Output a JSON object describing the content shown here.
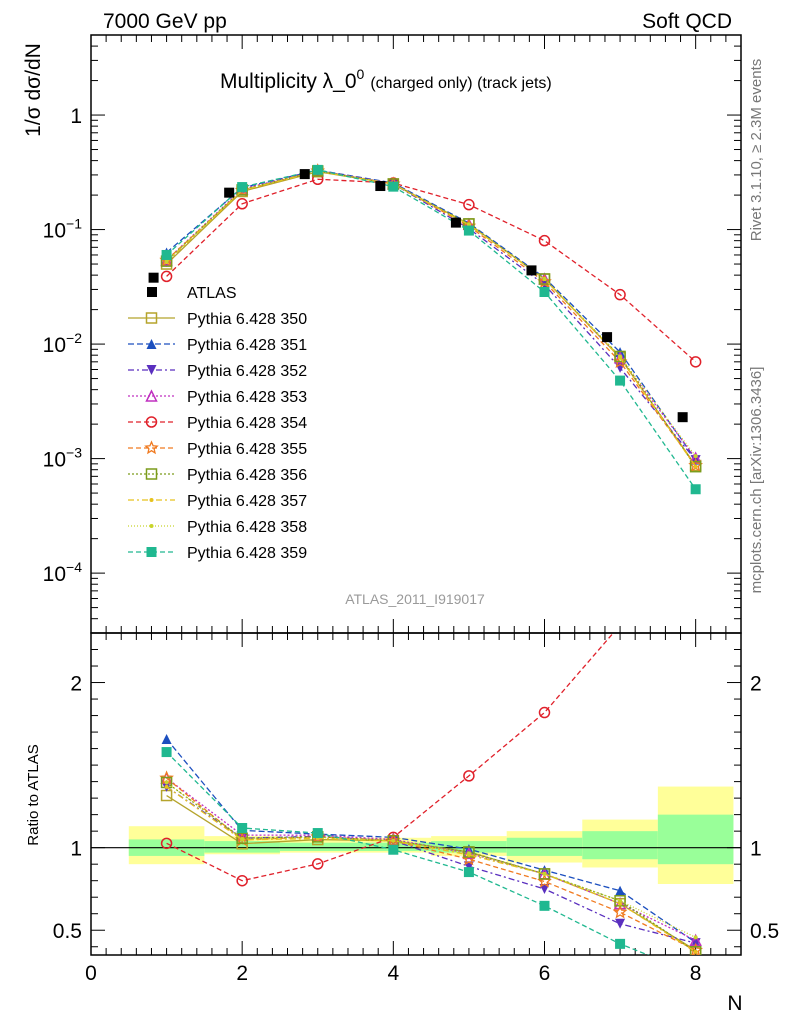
{
  "header": {
    "left": "7000 GeV pp",
    "right": "Soft QCD"
  },
  "side_labels": {
    "rivet": "Rivet 3.1.10, ≥ 2.3M events",
    "mcplots": "mcplots.cern.ch [arXiv:1306.3436]"
  },
  "chart_data": {
    "type": "scatter",
    "title": "Multiplicity λ_0⁰ (charged only) (track jets)",
    "title_main": "Multiplicity λ_0",
    "title_sup": "0",
    "title_small": "(charged only) (track jets)",
    "analysis_label": "ATLAS_2011_I919017",
    "ylabel": "1/σ dσ/dN",
    "xlabel": "N",
    "ratio_ylabel": "Ratio to ATLAS",
    "xlim": [
      0,
      8.6
    ],
    "ylim": [
      3e-05,
      5
    ],
    "yscale": "log",
    "ratio_ylim": [
      0.35,
      2.3
    ],
    "x_ticks": [
      0,
      2,
      4,
      6,
      8
    ],
    "y_tick_labels": [
      {
        "value": 1,
        "base": "1",
        "exp": ""
      },
      {
        "value": 0.1,
        "base": "10",
        "exp": "−1"
      },
      {
        "value": 0.01,
        "base": "10",
        "exp": "−2"
      },
      {
        "value": 0.001,
        "base": "10",
        "exp": "−3"
      },
      {
        "value": 0.0001,
        "base": "10",
        "exp": "−4"
      }
    ],
    "ratio_y_ticks": [
      0.5,
      1,
      2
    ],
    "x": [
      1,
      2,
      3,
      4,
      5,
      6,
      7,
      8
    ],
    "data": {
      "name": "ATLAS",
      "color": "#000000",
      "values": [
        0.038,
        0.21,
        0.305,
        0.24,
        0.115,
        0.044,
        0.0115,
        0.0023
      ],
      "bands": {
        "stat_lo": [
          0.95,
          0.97,
          0.98,
          0.98,
          0.97,
          0.95,
          0.93,
          0.9
        ],
        "stat_hi": [
          1.05,
          1.04,
          1.03,
          1.03,
          1.04,
          1.06,
          1.1,
          1.2
        ],
        "tot_lo": [
          0.9,
          0.96,
          0.97,
          0.97,
          0.95,
          0.91,
          0.88,
          0.78
        ],
        "tot_hi": [
          1.13,
          1.07,
          1.05,
          1.06,
          1.07,
          1.1,
          1.17,
          1.37
        ]
      }
    },
    "series": [
      {
        "name": "Pythia 6.428 350",
        "color": "#b5a42c",
        "marker": "square-open",
        "dash": "",
        "values": [
          0.05,
          0.215,
          0.32,
          0.25,
          0.112,
          0.037,
          0.0076,
          0.00087
        ]
      },
      {
        "name": "Pythia 6.428 351",
        "color": "#1c4fbf",
        "marker": "triangle-up",
        "dash": "6,3",
        "values": [
          0.063,
          0.232,
          0.33,
          0.255,
          0.114,
          0.038,
          0.0085,
          0.00098
        ]
      },
      {
        "name": "Pythia 6.428 352",
        "color": "#5a2fbf",
        "marker": "triangle-down",
        "dash": "6,3,2,3",
        "values": [
          0.052,
          0.222,
          0.326,
          0.25,
          0.102,
          0.033,
          0.0062,
          0.00097
        ]
      },
      {
        "name": "Pythia 6.428 353",
        "color": "#c030c0",
        "marker": "triangle-open",
        "dash": "2,2",
        "values": [
          0.054,
          0.226,
          0.328,
          0.252,
          0.111,
          0.037,
          0.0076,
          0.00101
        ]
      },
      {
        "name": "Pythia 6.428 354",
        "color": "#e0202a",
        "marker": "circle-open",
        "dash": "5,3",
        "values": [
          0.039,
          0.168,
          0.275,
          0.255,
          0.165,
          0.08,
          0.027,
          0.007
        ]
      },
      {
        "name": "Pythia 6.428 355",
        "color": "#f07a20",
        "marker": "star",
        "dash": "5,3",
        "values": [
          0.054,
          0.22,
          0.325,
          0.25,
          0.107,
          0.035,
          0.007,
          0.00087
        ]
      },
      {
        "name": "Pythia 6.428 356",
        "color": "#7c9c1c",
        "marker": "square-open",
        "dash": "2,2",
        "values": [
          0.053,
          0.222,
          0.325,
          0.25,
          0.112,
          0.037,
          0.0078,
          0.00085
        ]
      },
      {
        "name": "Pythia 6.428 357",
        "color": "#e6c21e",
        "marker": "dot",
        "dash": "6,3,2,3",
        "values": [
          0.052,
          0.22,
          0.322,
          0.25,
          0.11,
          0.037,
          0.0076,
          0.00085
        ]
      },
      {
        "name": "Pythia 6.428 358",
        "color": "#c8d42a",
        "marker": "dot",
        "dash": "1,2",
        "values": [
          0.053,
          0.221,
          0.324,
          0.25,
          0.111,
          0.037,
          0.0078,
          0.00105
        ]
      },
      {
        "name": "Pythia 6.428 359",
        "color": "#20b890",
        "marker": "square",
        "dash": "5,3",
        "values": [
          0.06,
          0.235,
          0.332,
          0.237,
          0.098,
          0.0285,
          0.0048,
          0.00054
        ]
      }
    ]
  }
}
